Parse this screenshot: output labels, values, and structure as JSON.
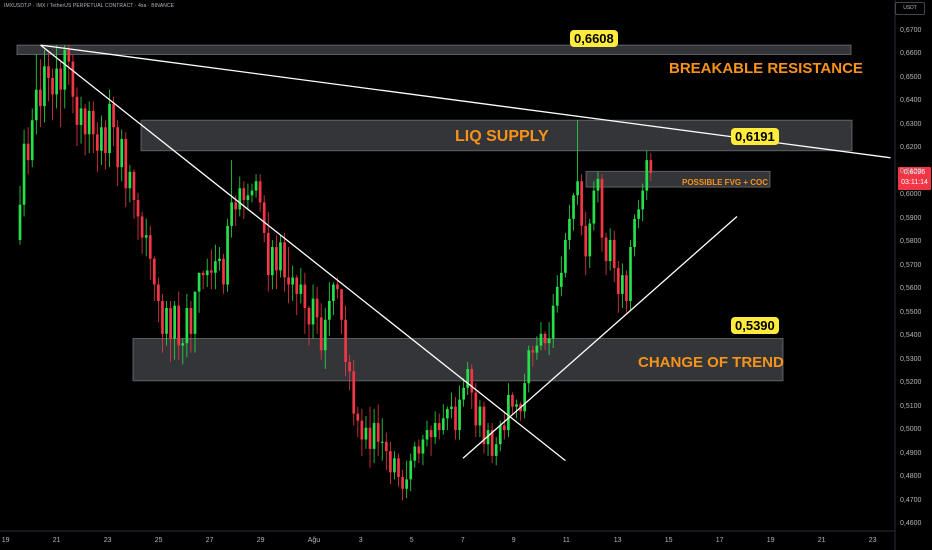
{
  "header": {
    "title": "IMXUSDT.P · IMX / TetherUS PERPETUAL CONTRACT · 4sa · BINANCE",
    "currency_button": "USDT"
  },
  "last_price": {
    "value": "0,6096",
    "countdown": "03:11:14",
    "color": "#f23645"
  },
  "annotations": {
    "resistance_price": "0,6608",
    "resistance_label": "BREAKABLE RESISTANCE",
    "supply_label": "LIQ SUPPLY",
    "supply_price": "0,6191",
    "fvg_label": "POSSIBLE FVG + COC",
    "trend_price": "0,5390",
    "trend_label": "CHANGE OF TREND"
  },
  "colors": {
    "up": "#26e04a",
    "down": "#f23645",
    "background": "#000000",
    "label_orange": "#f7931a",
    "price_box_yellow": "#ffeb3b",
    "zone_fill": "#5d6066"
  },
  "chart_data": {
    "type": "candlestick",
    "y_axis": {
      "range": [
        0.455,
        0.675
      ],
      "ticks": [
        "0,6700",
        "0,6600",
        "0,6500",
        "0,6400",
        "0,6300",
        "0,6200",
        "0,6100",
        "0,6000",
        "0,5900",
        "0,5800",
        "0,5700",
        "0,5600",
        "0,5500",
        "0,5400",
        "0,5300",
        "0,5200",
        "0,5100",
        "0,5000",
        "0,4900",
        "0,4800",
        "0,4700",
        "0,4600"
      ]
    },
    "x_axis": {
      "ticks": [
        "19",
        "21",
        "23",
        "25",
        "27",
        "29",
        "Ağu",
        "3",
        "5",
        "7",
        "9",
        "11",
        "13",
        "15",
        "17",
        "19",
        "21",
        "23"
      ]
    },
    "zones": [
      {
        "name": "breakable-resistance",
        "low": 0.66,
        "high": 0.664
      },
      {
        "name": "liq-supply",
        "low": 0.619,
        "high": 0.632
      },
      {
        "name": "possible-fvg-coc",
        "low": 0.6035,
        "high": 0.6102
      },
      {
        "name": "change-of-trend",
        "low": 0.521,
        "high": 0.539
      }
    ],
    "trendlines": [
      {
        "name": "long-descending",
        "from": [
          1.4,
          0.664
        ],
        "to": [
          34.6,
          0.616
        ]
      },
      {
        "name": "descending-1",
        "from": [
          1.4,
          0.664
        ],
        "to": [
          21.9,
          0.487
        ]
      },
      {
        "name": "ascending",
        "from": [
          17.9,
          0.488
        ],
        "to": [
          28.6,
          0.591
        ]
      }
    ],
    "candles": [
      [
        0.581,
        0.596,
        0.579,
        0.604
      ],
      [
        0.596,
        0.622,
        0.591,
        0.628
      ],
      [
        0.622,
        0.615,
        0.609,
        0.629
      ],
      [
        0.615,
        0.632,
        0.612,
        0.637
      ],
      [
        0.632,
        0.645,
        0.626,
        0.66
      ],
      [
        0.645,
        0.638,
        0.629,
        0.658
      ],
      [
        0.638,
        0.655,
        0.631,
        0.662
      ],
      [
        0.655,
        0.65,
        0.64,
        0.661
      ],
      [
        0.65,
        0.643,
        0.632,
        0.654
      ],
      [
        0.643,
        0.654,
        0.637,
        0.664
      ],
      [
        0.654,
        0.645,
        0.629,
        0.657
      ],
      [
        0.645,
        0.662,
        0.637,
        0.664
      ],
      [
        0.662,
        0.657,
        0.647,
        0.664
      ],
      [
        0.657,
        0.642,
        0.635,
        0.66
      ],
      [
        0.642,
        0.63,
        0.621,
        0.646
      ],
      [
        0.63,
        0.637,
        0.622,
        0.642
      ],
      [
        0.637,
        0.626,
        0.617,
        0.639
      ],
      [
        0.626,
        0.636,
        0.618,
        0.64
      ],
      [
        0.636,
        0.626,
        0.618,
        0.64
      ],
      [
        0.626,
        0.619,
        0.61,
        0.631
      ],
      [
        0.619,
        0.629,
        0.613,
        0.634
      ],
      [
        0.629,
        0.618,
        0.611,
        0.632
      ],
      [
        0.618,
        0.639,
        0.612,
        0.645
      ],
      [
        0.639,
        0.629,
        0.621,
        0.642
      ],
      [
        0.629,
        0.612,
        0.604,
        0.632
      ],
      [
        0.612,
        0.624,
        0.606,
        0.628
      ],
      [
        0.624,
        0.603,
        0.595,
        0.627
      ],
      [
        0.603,
        0.61,
        0.597,
        0.613
      ],
      [
        0.61,
        0.598,
        0.59,
        0.611
      ],
      [
        0.598,
        0.591,
        0.581,
        0.601
      ],
      [
        0.591,
        0.582,
        0.575,
        0.593
      ],
      [
        0.582,
        0.583,
        0.574,
        0.59
      ],
      [
        0.583,
        0.573,
        0.564,
        0.587
      ],
      [
        0.573,
        0.562,
        0.555,
        0.574
      ],
      [
        0.562,
        0.555,
        0.546,
        0.565
      ],
      [
        0.555,
        0.541,
        0.533,
        0.558
      ],
      [
        0.541,
        0.552,
        0.536,
        0.555
      ],
      [
        0.552,
        0.539,
        0.529,
        0.555
      ],
      [
        0.539,
        0.553,
        0.53,
        0.555
      ],
      [
        0.553,
        0.536,
        0.53,
        0.559
      ],
      [
        0.536,
        0.537,
        0.528,
        0.539
      ],
      [
        0.537,
        0.552,
        0.531,
        0.558
      ],
      [
        0.552,
        0.541,
        0.533,
        0.555
      ],
      [
        0.541,
        0.559,
        0.533,
        0.559
      ],
      [
        0.559,
        0.567,
        0.55,
        0.567
      ],
      [
        0.567,
        0.566,
        0.56,
        0.568
      ],
      [
        0.566,
        0.568,
        0.561,
        0.573
      ],
      [
        0.568,
        0.567,
        0.56,
        0.577
      ],
      [
        0.567,
        0.572,
        0.56,
        0.579
      ],
      [
        0.572,
        0.573,
        0.568,
        0.578
      ],
      [
        0.573,
        0.562,
        0.558,
        0.575
      ],
      [
        0.562,
        0.587,
        0.559,
        0.59
      ],
      [
        0.587,
        0.597,
        0.582,
        0.615
      ],
      [
        0.597,
        0.594,
        0.587,
        0.6
      ],
      [
        0.594,
        0.603,
        0.591,
        0.608
      ],
      [
        0.603,
        0.598,
        0.59,
        0.606
      ],
      [
        0.598,
        0.6,
        0.594,
        0.605
      ],
      [
        0.6,
        0.602,
        0.597,
        0.605
      ],
      [
        0.602,
        0.606,
        0.599,
        0.609
      ],
      [
        0.606,
        0.597,
        0.593,
        0.609
      ],
      [
        0.597,
        0.584,
        0.58,
        0.6
      ],
      [
        0.584,
        0.566,
        0.559,
        0.593
      ],
      [
        0.566,
        0.578,
        0.56,
        0.581
      ],
      [
        0.578,
        0.568,
        0.56,
        0.583
      ],
      [
        0.568,
        0.58,
        0.565,
        0.583
      ],
      [
        0.58,
        0.565,
        0.559,
        0.584
      ],
      [
        0.565,
        0.562,
        0.554,
        0.578
      ],
      [
        0.562,
        0.565,
        0.555,
        0.57
      ],
      [
        0.565,
        0.558,
        0.549,
        0.566
      ],
      [
        0.558,
        0.562,
        0.554,
        0.569
      ],
      [
        0.562,
        0.552,
        0.541,
        0.567
      ],
      [
        0.552,
        0.545,
        0.536,
        0.553
      ],
      [
        0.545,
        0.556,
        0.539,
        0.562
      ],
      [
        0.556,
        0.548,
        0.541,
        0.561
      ],
      [
        0.548,
        0.534,
        0.53,
        0.554
      ],
      [
        0.534,
        0.547,
        0.526,
        0.552
      ],
      [
        0.547,
        0.555,
        0.54,
        0.563
      ],
      [
        0.555,
        0.562,
        0.549,
        0.563
      ],
      [
        0.562,
        0.56,
        0.556,
        0.565
      ],
      [
        0.56,
        0.547,
        0.541,
        0.56
      ],
      [
        0.547,
        0.529,
        0.523,
        0.553
      ],
      [
        0.529,
        0.525,
        0.517,
        0.532
      ],
      [
        0.525,
        0.507,
        0.502,
        0.53
      ],
      [
        0.507,
        0.504,
        0.497,
        0.51
      ],
      [
        0.504,
        0.496,
        0.489,
        0.509
      ],
      [
        0.496,
        0.501,
        0.492,
        0.506
      ],
      [
        0.501,
        0.492,
        0.484,
        0.51
      ],
      [
        0.492,
        0.503,
        0.486,
        0.509
      ],
      [
        0.503,
        0.495,
        0.489,
        0.511
      ],
      [
        0.495,
        0.495,
        0.487,
        0.505
      ],
      [
        0.495,
        0.491,
        0.483,
        0.499
      ],
      [
        0.491,
        0.482,
        0.477,
        0.495
      ],
      [
        0.482,
        0.488,
        0.479,
        0.491
      ],
      [
        0.488,
        0.48,
        0.476,
        0.49
      ],
      [
        0.48,
        0.475,
        0.47,
        0.483
      ],
      [
        0.475,
        0.479,
        0.471,
        0.487
      ],
      [
        0.479,
        0.487,
        0.474,
        0.49
      ],
      [
        0.487,
        0.493,
        0.484,
        0.495
      ],
      [
        0.493,
        0.49,
        0.486,
        0.496
      ],
      [
        0.49,
        0.496,
        0.485,
        0.498
      ],
      [
        0.496,
        0.5,
        0.493,
        0.504
      ],
      [
        0.5,
        0.497,
        0.489,
        0.502
      ],
      [
        0.497,
        0.503,
        0.494,
        0.508
      ],
      [
        0.503,
        0.5,
        0.496,
        0.507
      ],
      [
        0.5,
        0.505,
        0.498,
        0.511
      ],
      [
        0.505,
        0.509,
        0.5,
        0.51
      ],
      [
        0.509,
        0.51,
        0.505,
        0.516
      ],
      [
        0.51,
        0.5,
        0.496,
        0.514
      ],
      [
        0.5,
        0.513,
        0.496,
        0.519
      ],
      [
        0.513,
        0.518,
        0.51,
        0.522
      ],
      [
        0.518,
        0.526,
        0.515,
        0.529
      ],
      [
        0.526,
        0.516,
        0.509,
        0.528
      ],
      [
        0.516,
        0.502,
        0.497,
        0.52
      ],
      [
        0.502,
        0.51,
        0.497,
        0.513
      ],
      [
        0.51,
        0.494,
        0.49,
        0.512
      ],
      [
        0.494,
        0.5,
        0.489,
        0.503
      ],
      [
        0.5,
        0.489,
        0.486,
        0.503
      ],
      [
        0.489,
        0.494,
        0.485,
        0.497
      ],
      [
        0.494,
        0.502,
        0.491,
        0.504
      ],
      [
        0.502,
        0.5,
        0.496,
        0.508
      ],
      [
        0.5,
        0.515,
        0.497,
        0.52
      ],
      [
        0.515,
        0.51,
        0.507,
        0.516
      ],
      [
        0.51,
        0.511,
        0.505,
        0.513
      ],
      [
        0.511,
        0.508,
        0.504,
        0.512
      ],
      [
        0.508,
        0.52,
        0.505,
        0.524
      ],
      [
        0.52,
        0.534,
        0.516,
        0.536
      ],
      [
        0.534,
        0.533,
        0.527,
        0.536
      ],
      [
        0.533,
        0.536,
        0.53,
        0.54
      ],
      [
        0.536,
        0.541,
        0.534,
        0.546
      ],
      [
        0.541,
        0.537,
        0.534,
        0.542
      ],
      [
        0.537,
        0.539,
        0.532,
        0.546
      ],
      [
        0.539,
        0.553,
        0.535,
        0.558
      ],
      [
        0.553,
        0.561,
        0.55,
        0.566
      ],
      [
        0.561,
        0.567,
        0.557,
        0.574
      ],
      [
        0.567,
        0.581,
        0.565,
        0.584
      ],
      [
        0.581,
        0.59,
        0.577,
        0.596
      ],
      [
        0.59,
        0.6,
        0.585,
        0.601
      ],
      [
        0.6,
        0.606,
        0.596,
        0.632
      ],
      [
        0.606,
        0.587,
        0.583,
        0.609
      ],
      [
        0.587,
        0.574,
        0.566,
        0.593
      ],
      [
        0.574,
        0.588,
        0.569,
        0.59
      ],
      [
        0.588,
        0.602,
        0.585,
        0.606
      ],
      [
        0.602,
        0.607,
        0.597,
        0.61
      ],
      [
        0.607,
        0.582,
        0.576,
        0.609
      ],
      [
        0.582,
        0.572,
        0.566,
        0.584
      ],
      [
        0.572,
        0.581,
        0.568,
        0.586
      ],
      [
        0.581,
        0.569,
        0.563,
        0.585
      ],
      [
        0.569,
        0.558,
        0.55,
        0.572
      ],
      [
        0.558,
        0.566,
        0.552,
        0.571
      ],
      [
        0.566,
        0.555,
        0.55,
        0.568
      ],
      [
        0.555,
        0.578,
        0.551,
        0.581
      ],
      [
        0.578,
        0.59,
        0.574,
        0.592
      ],
      [
        0.59,
        0.594,
        0.586,
        0.598
      ],
      [
        0.594,
        0.602,
        0.589,
        0.605
      ],
      [
        0.602,
        0.615,
        0.598,
        0.619
      ],
      [
        0.615,
        0.6096,
        0.606,
        0.618
      ]
    ]
  }
}
